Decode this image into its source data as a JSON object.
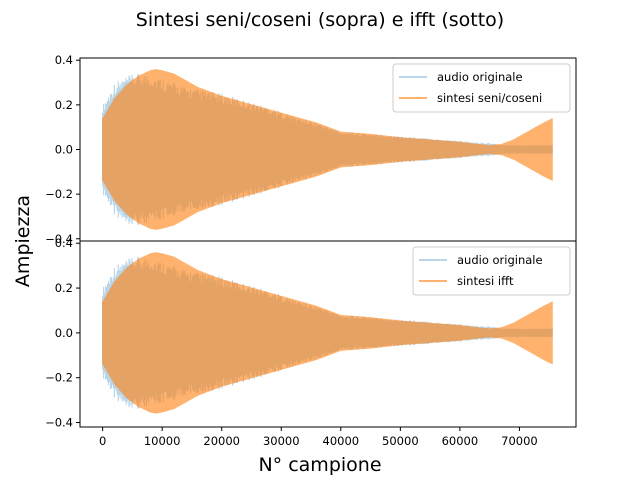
{
  "figure": {
    "title": "Sintesi seni/coseni (sopra) e ifft (sotto)",
    "xlabel": "N° campione",
    "ylabel": "Ampiezza"
  },
  "colors": {
    "original": "#1f77b4",
    "synthesis": "#ff7f0e"
  },
  "chart_data": [
    {
      "type": "area",
      "title": "",
      "xlabel": "",
      "ylabel": "",
      "xlim": [
        -3800,
        79500
      ],
      "ylim": [
        -0.41,
        0.41
      ],
      "yticks": [
        -0.4,
        -0.2,
        0.0,
        0.2,
        0.4
      ],
      "ytick_labels": [
        "−0.4",
        "−0.2",
        "0.0",
        "0.2",
        "0.4"
      ],
      "xticks_visible": false,
      "legend": "top-right",
      "x": [
        0,
        2000,
        4000,
        6000,
        8000,
        9000,
        10000,
        12000,
        14000,
        16000,
        18000,
        20000,
        24000,
        28000,
        32000,
        36000,
        40000,
        45000,
        50000,
        55000,
        60000,
        63000,
        65000,
        67000,
        69000,
        70000,
        72000,
        74000,
        75500
      ],
      "series": [
        {
          "name": "audio originale",
          "envelope": [
            0.2,
            0.3,
            0.33,
            0.34,
            0.34,
            0.33,
            0.32,
            0.3,
            0.28,
            0.27,
            0.26,
            0.25,
            0.22,
            0.19,
            0.15,
            0.12,
            0.08,
            0.07,
            0.06,
            0.05,
            0.04,
            0.03,
            0.03,
            0.02,
            0.02,
            0.02,
            0.02,
            0.02,
            0.02
          ]
        },
        {
          "name": "sintesi seni/coseni",
          "envelope": [
            0.14,
            0.23,
            0.29,
            0.33,
            0.355,
            0.36,
            0.355,
            0.34,
            0.31,
            0.28,
            0.26,
            0.24,
            0.21,
            0.18,
            0.15,
            0.12,
            0.08,
            0.07,
            0.055,
            0.045,
            0.035,
            0.025,
            0.02,
            0.025,
            0.045,
            0.06,
            0.09,
            0.12,
            0.14
          ]
        }
      ]
    },
    {
      "type": "area",
      "title": "",
      "xlabel": "",
      "ylabel": "",
      "xlim": [
        -3800,
        79500
      ],
      "ylim": [
        -0.42,
        0.41
      ],
      "yticks": [
        -0.4,
        -0.2,
        0.0,
        0.2,
        0.4
      ],
      "ytick_labels": [
        "−0.4",
        "−0.2",
        "0.0",
        "0.2",
        "0.4"
      ],
      "xticks": [
        0,
        10000,
        20000,
        30000,
        40000,
        50000,
        60000,
        70000
      ],
      "xtick_labels": [
        "0",
        "10000",
        "20000",
        "30000",
        "40000",
        "50000",
        "60000",
        "70000"
      ],
      "legend": "top-right",
      "x": [
        0,
        2000,
        4000,
        6000,
        8000,
        9000,
        10000,
        12000,
        14000,
        16000,
        18000,
        20000,
        24000,
        28000,
        32000,
        36000,
        40000,
        45000,
        50000,
        55000,
        60000,
        63000,
        65000,
        67000,
        69000,
        70000,
        72000,
        74000,
        75500
      ],
      "series": [
        {
          "name": "audio originale",
          "envelope": [
            0.2,
            0.3,
            0.33,
            0.34,
            0.34,
            0.33,
            0.32,
            0.3,
            0.28,
            0.27,
            0.26,
            0.25,
            0.22,
            0.19,
            0.15,
            0.12,
            0.08,
            0.07,
            0.06,
            0.05,
            0.04,
            0.03,
            0.03,
            0.02,
            0.02,
            0.02,
            0.02,
            0.02,
            0.02
          ]
        },
        {
          "name": "sintesi ifft",
          "envelope": [
            0.14,
            0.23,
            0.29,
            0.33,
            0.355,
            0.36,
            0.355,
            0.34,
            0.31,
            0.28,
            0.26,
            0.24,
            0.21,
            0.18,
            0.15,
            0.12,
            0.08,
            0.07,
            0.055,
            0.045,
            0.035,
            0.025,
            0.02,
            0.025,
            0.045,
            0.06,
            0.09,
            0.12,
            0.14
          ]
        }
      ]
    }
  ]
}
